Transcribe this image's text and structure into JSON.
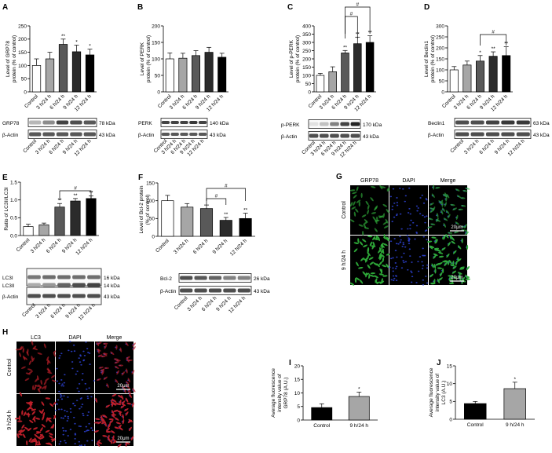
{
  "groups": [
    "Control",
    "3 h/24 h",
    "6 h/24 h",
    "9 h/24 h",
    "12 h/24 h"
  ],
  "colors": {
    "bars": [
      "#ffffff",
      "#a6a6a6",
      "#595959",
      "#2b2b2b",
      "#000000"
    ],
    "gfp": "#2fae3a",
    "dapi": "#2b3fc9",
    "lc3": "#c0202a"
  },
  "panels": {
    "A": {
      "letter": "A",
      "ylabel": "Level of GRP78\nprotein (% of control)",
      "yticks": [
        "0",
        "50",
        "100",
        "150",
        "200",
        "250"
      ],
      "blot": [
        {
          "label": "GRP78",
          "kda": "78 kDa"
        },
        {
          "label": "β-Actin",
          "kda": "43 kDa"
        }
      ]
    },
    "B": {
      "letter": "B",
      "ylabel": "Level of PERK\nprotein (% of control)",
      "yticks": [
        "0",
        "50",
        "100",
        "150",
        "200"
      ],
      "blot": [
        {
          "label": "PERK",
          "kda": "140 kDa"
        },
        {
          "label": "β-Actin",
          "kda": "43 kDa"
        }
      ]
    },
    "C": {
      "letter": "C",
      "ylabel": "Level of p-PERK\nprotein (% of control)",
      "yticks": [
        "0",
        "50",
        "100",
        "150",
        "200",
        "250",
        "300",
        "350",
        "400"
      ],
      "blot": [
        {
          "label": "p-PERK",
          "kda": "170 kDa"
        },
        {
          "label": "β-Actin",
          "kda": "43 kDa"
        }
      ]
    },
    "D": {
      "letter": "D",
      "ylabel": "Level of Beclin1\nprotein (% of control)",
      "yticks": [
        "0",
        "50",
        "100",
        "150",
        "200",
        "250",
        "300"
      ],
      "blot": [
        {
          "label": "Beclin1",
          "kda": "63 kDa"
        },
        {
          "label": "β-Actin",
          "kda": "43 kDa"
        }
      ]
    },
    "E": {
      "letter": "E",
      "ylabel": "Ratio of LC3II/LC3I",
      "yticks": [
        "0.0",
        "0.5",
        "1.0",
        "1.5"
      ],
      "blot": [
        {
          "label": "LC3I",
          "kda": "16 kDa"
        },
        {
          "label": "LC3II",
          "kda": "14 kDa"
        },
        {
          "label": "β-Actin",
          "kda": "43 kDa"
        }
      ]
    },
    "F": {
      "letter": "F",
      "ylabel": "Level of Bcl-2 protein\n(% of control)",
      "yticks": [
        "0",
        "50",
        "100",
        "150"
      ],
      "blot": [
        {
          "label": "Bcl-2",
          "kda": "26 kDa"
        },
        {
          "label": "β-Actin",
          "kda": "43 kDa"
        }
      ]
    },
    "G": {
      "letter": "G",
      "cols": [
        "GRP78",
        "DAPI",
        "Merge"
      ],
      "rows": [
        "Control",
        "9 h/24 h"
      ],
      "scale": "20μm"
    },
    "H": {
      "letter": "H",
      "cols": [
        "LC3",
        "DAPI",
        "Merge"
      ],
      "rows": [
        "Control",
        "9 h/24 h"
      ],
      "scale": "20μm"
    },
    "I": {
      "letter": "I",
      "ylabel": "Average fluorescence\nintensity value of\nGRP78 (A.U.)",
      "yticks": [
        "0",
        "5",
        "10",
        "15",
        "20"
      ],
      "categories": [
        "Control",
        "9 h/24 h"
      ]
    },
    "J": {
      "letter": "J",
      "ylabel": "Average fluorescence\nintensity value of\nLC3 (A.U.)",
      "yticks": [
        "0",
        "5",
        "10",
        "15"
      ],
      "categories": [
        "Control",
        "9 h/24 h"
      ]
    }
  },
  "marks": {
    "sig_two": "**",
    "sig_one": "*",
    "hash": "#"
  },
  "chart_data": [
    {
      "type": "bar",
      "panel": "A",
      "categories": [
        "Control",
        "3 h/24 h",
        "6 h/24 h",
        "9 h/24 h",
        "12 h/24 h"
      ],
      "values": [
        100,
        125,
        180,
        152,
        140
      ],
      "errors": [
        25,
        25,
        20,
        25,
        22
      ],
      "ylabel": "Level of GRP78 protein (% of control)",
      "ylim": [
        0,
        250
      ],
      "significance": [
        "",
        "",
        "**",
        "*",
        "*"
      ]
    },
    {
      "type": "bar",
      "panel": "B",
      "categories": [
        "Control",
        "3 h/24 h",
        "6 h/24 h",
        "9 h/24 h",
        "12 h/24 h"
      ],
      "values": [
        100,
        102,
        110,
        120,
        105
      ],
      "errors": [
        18,
        15,
        15,
        15,
        12
      ],
      "ylabel": "Level of PERK protein (% of control)",
      "ylim": [
        0,
        200
      ]
    },
    {
      "type": "bar",
      "panel": "C",
      "categories": [
        "Control",
        "3 h/24 h",
        "6 h/24 h",
        "9 h/24 h",
        "12 h/24 h"
      ],
      "values": [
        100,
        122,
        236,
        292,
        300
      ],
      "errors": [
        12,
        30,
        15,
        40,
        40
      ],
      "ylabel": "Level of p-PERK protein (% of control)",
      "ylim": [
        0,
        400
      ],
      "significance": [
        "",
        "",
        "**",
        "**",
        "**"
      ]
    },
    {
      "type": "bar",
      "panel": "D",
      "categories": [
        "Control",
        "3 h/24 h",
        "6 h/24 h",
        "9 h/24 h",
        "12 h/24 h"
      ],
      "values": [
        100,
        122,
        140,
        162,
        165
      ],
      "errors": [
        15,
        18,
        25,
        20,
        40
      ],
      "ylabel": "Level of Beclin1 protein (% of control)",
      "ylim": [
        0,
        300
      ],
      "significance": [
        "",
        "",
        "*",
        "**",
        "**"
      ]
    },
    {
      "type": "bar",
      "panel": "E",
      "categories": [
        "Control",
        "3 h/24 h",
        "6 h/24 h",
        "9 h/24 h",
        "12 h/24 h"
      ],
      "values": [
        0.25,
        0.3,
        0.8,
        0.97,
        1.04
      ],
      "errors": [
        0.07,
        0.05,
        0.1,
        0.07,
        0.07
      ],
      "ylabel": "Ratio of LC3II/LC3I",
      "ylim": [
        0,
        1.5
      ],
      "significance": [
        "",
        "",
        "**",
        "**",
        "**"
      ]
    },
    {
      "type": "bar",
      "panel": "F",
      "categories": [
        "Control",
        "3 h/24 h",
        "6 h/24 h",
        "9 h/24 h",
        "12 h/24 h"
      ],
      "values": [
        100,
        82,
        78,
        45,
        50
      ],
      "errors": [
        15,
        10,
        10,
        8,
        15
      ],
      "ylabel": "Level of Bcl-2 protein (% of control)",
      "ylim": [
        0,
        150
      ],
      "significance": [
        "",
        "",
        "",
        "**",
        "**"
      ]
    },
    {
      "type": "bar",
      "panel": "I",
      "categories": [
        "Control",
        "9 h/24 h"
      ],
      "values": [
        4.6,
        8.7
      ],
      "errors": [
        1.4,
        1.6
      ],
      "ylabel": "Average fluorescence intensity value of GRP78 (A.U.)",
      "ylim": [
        0,
        20
      ],
      "significance": [
        "",
        "*"
      ]
    },
    {
      "type": "bar",
      "panel": "J",
      "categories": [
        "Control",
        "9 h/24 h"
      ],
      "values": [
        4.4,
        8.6
      ],
      "errors": [
        0.6,
        1.8
      ],
      "ylabel": "Average fluorescence intensity value of LC3 (A.U.)",
      "ylim": [
        0,
        15
      ],
      "significance": [
        "",
        "*"
      ]
    }
  ]
}
